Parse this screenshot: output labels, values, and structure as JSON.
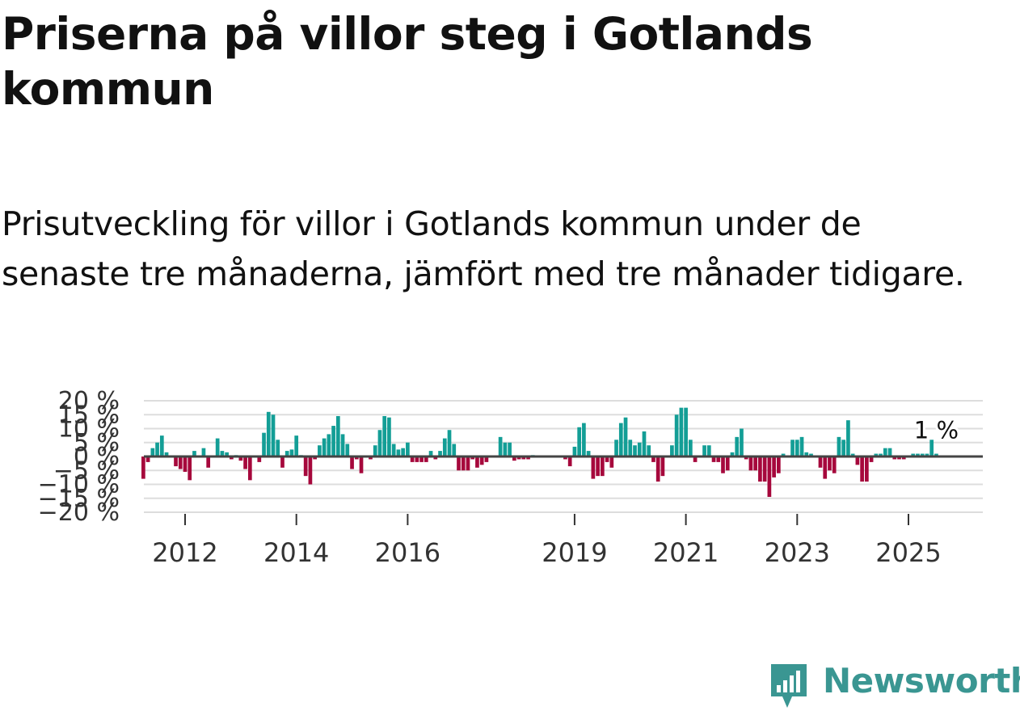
{
  "title": "Priserna på villor steg i Gotlands kommun",
  "subtitle": "Prisutveckling för villor i Gotlands kommun under de senaste tre månaderna, jämfört med tre månader tidigare.",
  "brand": "Newsworthy",
  "colors": {
    "positive": "#139e96",
    "negative": "#a6083c",
    "zero_line": "#444444",
    "grid": "#dddddd",
    "brand": "#3a9692"
  },
  "chart_data": {
    "type": "bar",
    "title": "Priserna på villor steg i Gotlands kommun",
    "ylabel": "",
    "xlabel": "",
    "ylim": [
      -20,
      20
    ],
    "yticks": [
      20,
      15,
      10,
      5,
      0,
      -5,
      -10,
      -15,
      -20
    ],
    "ytick_labels": [
      "20 %",
      "15 %",
      "10 %",
      "5 %",
      "0 %",
      "−5 %",
      "−10 %",
      "−15 %",
      "−20 %"
    ],
    "x_start": 2011.25,
    "x_step": 0.0833333,
    "xticks": [
      2012,
      2014,
      2016,
      2019,
      2021,
      2023,
      2025
    ],
    "xtick_labels": [
      "2012",
      "2014",
      "2016",
      "2019",
      "2021",
      "2023",
      "2025"
    ],
    "annotation": {
      "text": "1 %",
      "value": 1
    },
    "values": [
      -8,
      -2,
      3,
      5,
      7.5,
      1.5,
      0,
      -3.5,
      -4.5,
      -5.5,
      -8.5,
      2,
      0,
      3,
      -4,
      0,
      6.5,
      2,
      1.5,
      -1,
      0.5,
      -1.5,
      -4.5,
      -8.5,
      0,
      -2,
      8.5,
      16,
      15,
      6,
      -4,
      2,
      2.5,
      7.5,
      0.5,
      -7,
      -10,
      -1,
      4,
      6.5,
      8,
      11,
      14.5,
      8,
      4.5,
      -4.5,
      -1,
      -6,
      0,
      -1,
      4,
      9.5,
      14.5,
      14,
      4.5,
      2.5,
      3,
      5,
      -2,
      -2,
      -2,
      -2,
      2,
      -1,
      2,
      6.5,
      9.5,
      4.5,
      -5,
      -5,
      -5,
      -1,
      -4,
      -3,
      -2,
      0,
      0,
      7,
      5,
      5,
      -1.5,
      -1,
      -1,
      -1,
      0.5,
      0,
      0,
      0,
      0,
      0,
      0,
      -1,
      -3.5,
      3.5,
      10.5,
      12,
      2,
      -8,
      -7,
      -7,
      -2,
      -4,
      6,
      12,
      14,
      6,
      4,
      5,
      9,
      4,
      -2,
      -9,
      -7,
      0,
      4,
      15,
      17.5,
      17.5,
      6,
      -2,
      0,
      4,
      4,
      -2,
      -2,
      -6,
      -5,
      1.5,
      7,
      10,
      -1,
      -5,
      -5,
      -9,
      -9,
      -14.5,
      -7.5,
      -6,
      1,
      0,
      6,
      6,
      7,
      1.5,
      1,
      0,
      -4,
      -8,
      -5,
      -6,
      7,
      6,
      13,
      1,
      -3,
      -9,
      -9,
      -2,
      1,
      1,
      3,
      3,
      -1,
      -1,
      -1,
      0,
      1,
      1,
      1,
      1,
      6,
      1
    ],
    "legend": "none"
  }
}
